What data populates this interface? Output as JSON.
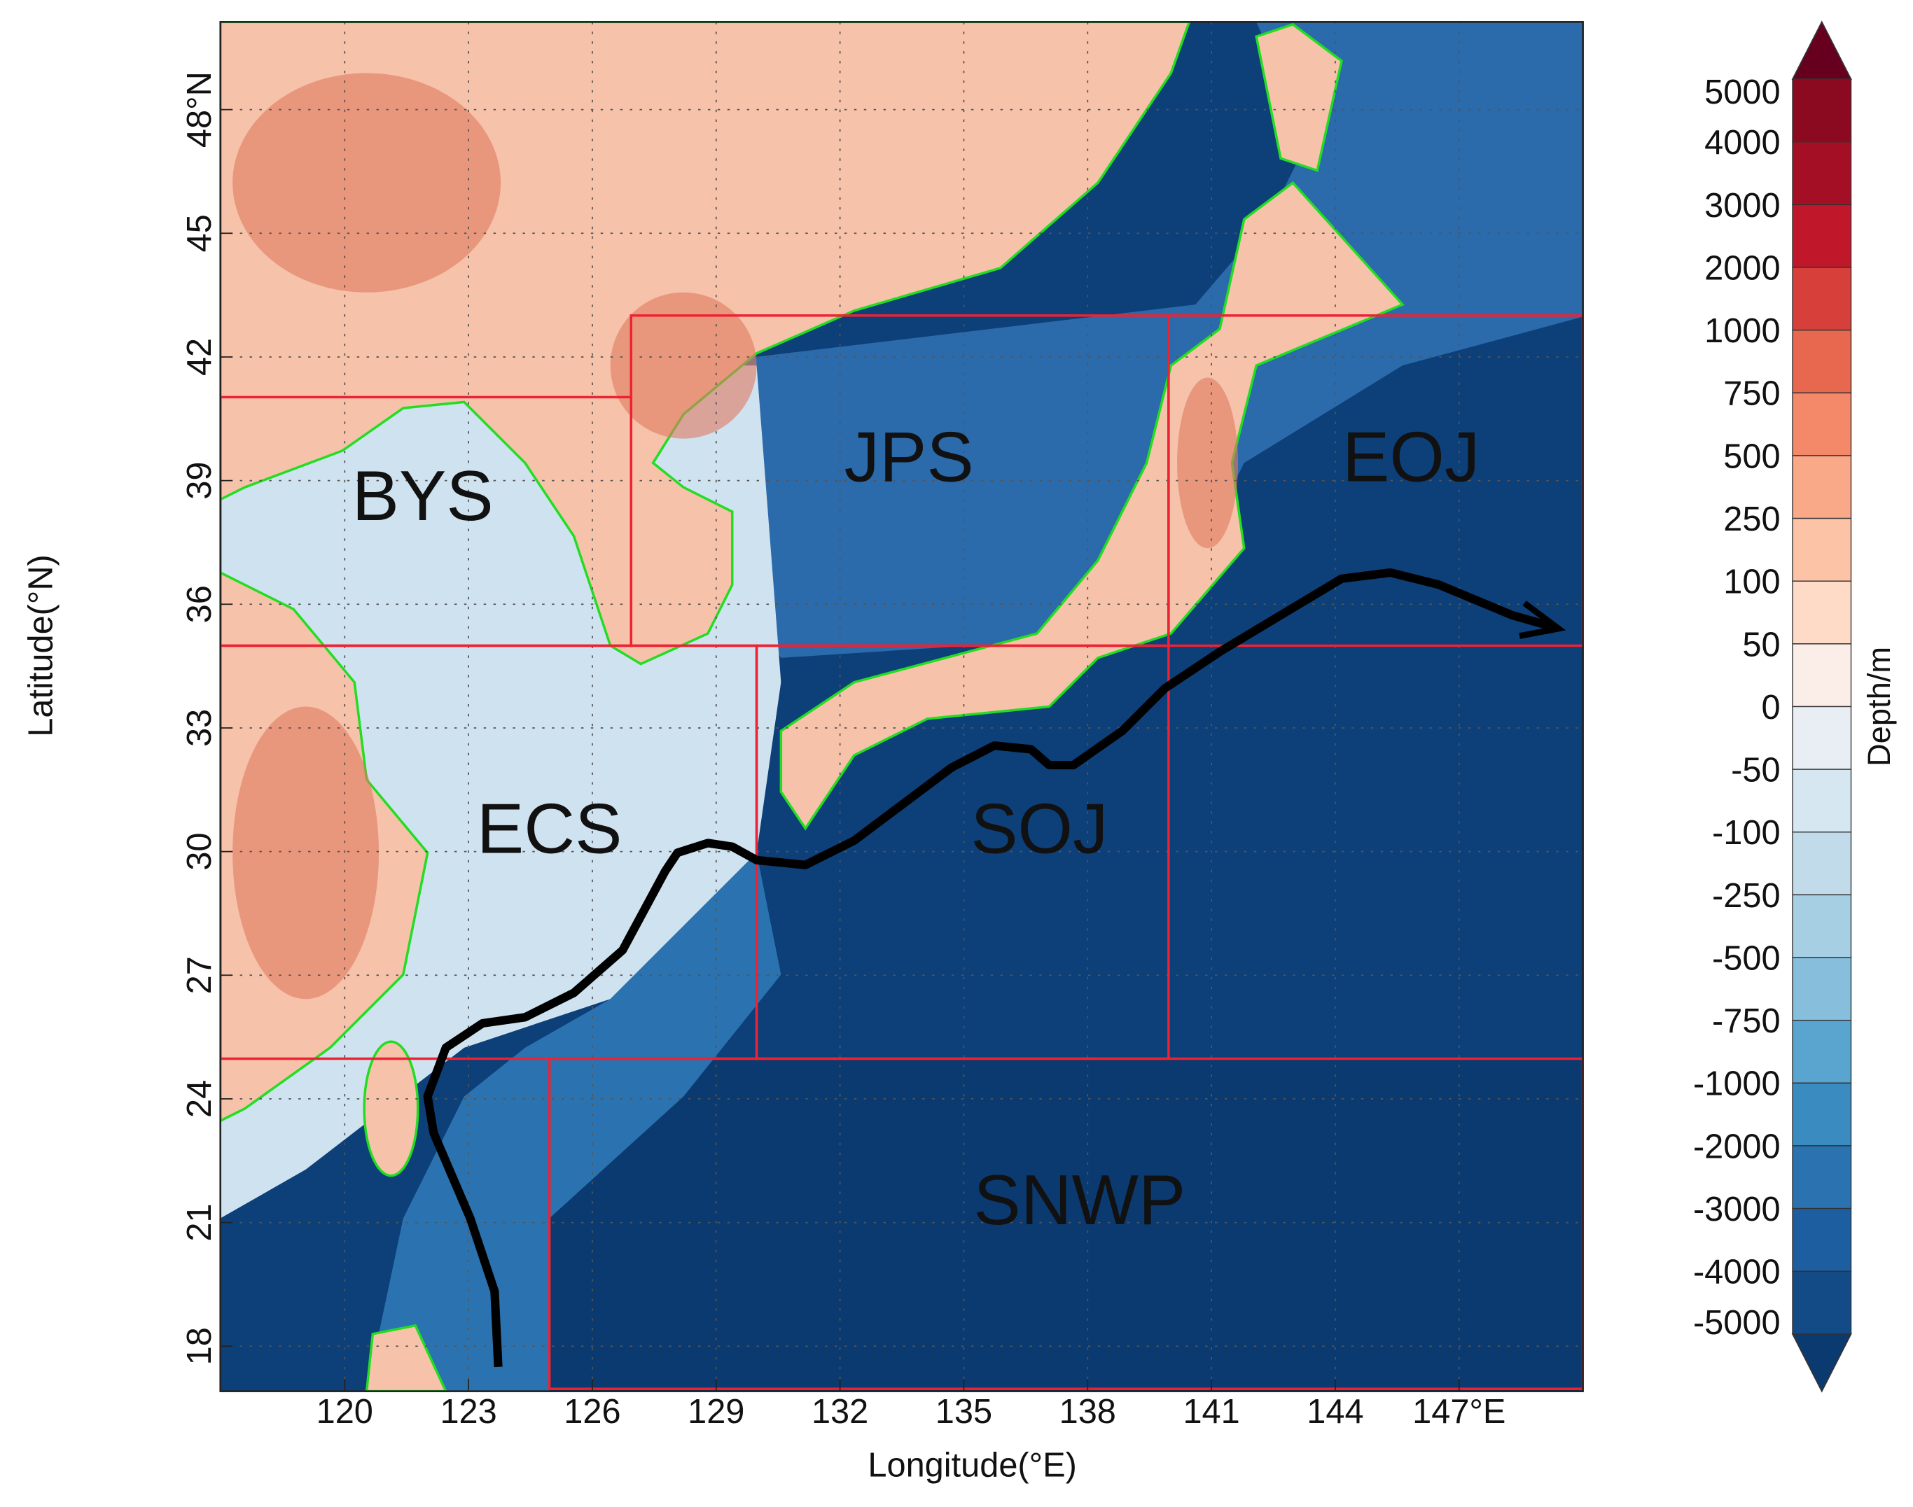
{
  "map": {
    "x_axis_label": "Longitude(°E)",
    "y_axis_label": "Latitude(°N)",
    "x_ticks": [
      "120",
      "123",
      "126",
      "129",
      "132",
      "135",
      "138",
      "141",
      "144",
      "147°E"
    ],
    "y_ticks": [
      "48°N",
      "45",
      "42",
      "39",
      "36",
      "33",
      "30",
      "27",
      "24",
      "21",
      "18"
    ],
    "regions": [
      {
        "label": "BYS"
      },
      {
        "label": "JPS"
      },
      {
        "label": "EOJ"
      },
      {
        "label": "ECS"
      },
      {
        "label": "SOJ"
      },
      {
        "label": "SNWP"
      }
    ]
  },
  "colorbar": {
    "label": "Depth/m",
    "ticks": [
      "5000",
      "4000",
      "3000",
      "2000",
      "1000",
      "750",
      "500",
      "250",
      "100",
      "50",
      "0",
      "-50",
      "-100",
      "-250",
      "-500",
      "-750",
      "-1000",
      "-2000",
      "-3000",
      "-4000",
      "-5000"
    ],
    "colors": [
      "#67001f",
      "#8b0a1f",
      "#a50f25",
      "#c0182a",
      "#d73f3b",
      "#e8674f",
      "#f4896a",
      "#f9a888",
      "#fcc3a6",
      "#fddbc7",
      "#fbeee8",
      "#e8eef4",
      "#d7e7f1",
      "#c1dbea",
      "#a6cfe4",
      "#86bedb",
      "#5aa5cf",
      "#3a8cc0",
      "#2a73b0",
      "#1c5e9f",
      "#124b86",
      "#0b3a70"
    ]
  }
}
